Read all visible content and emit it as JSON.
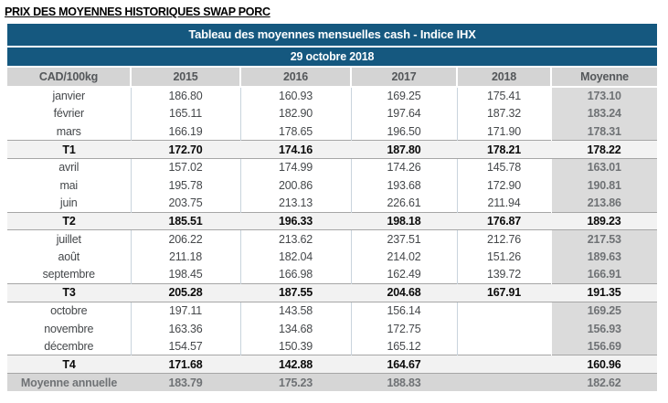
{
  "page_title": "PRIX DES MOYENNES HISTORIQUES SWAP PORC",
  "table": {
    "title": "Tableau des moyennes mensuelles cash - Indice IHX",
    "date": "29 octobre 2018",
    "columns": [
      "CAD/100kg",
      "2015",
      "2016",
      "2017",
      "2018",
      "Moyenne"
    ],
    "rows": [
      {
        "label": "janvier",
        "type": "month",
        "values": [
          "186.80",
          "160.93",
          "169.25",
          "175.41"
        ],
        "moyenne": "173.10"
      },
      {
        "label": "février",
        "type": "month",
        "values": [
          "165.11",
          "182.90",
          "197.64",
          "187.32"
        ],
        "moyenne": "183.24"
      },
      {
        "label": "mars",
        "type": "month",
        "values": [
          "166.19",
          "178.65",
          "196.50",
          "171.90"
        ],
        "moyenne": "178.31"
      },
      {
        "label": "T1",
        "type": "quarter",
        "values": [
          "172.70",
          "174.16",
          "187.80",
          "178.21"
        ],
        "moyenne": "178.22"
      },
      {
        "label": "avril",
        "type": "month",
        "values": [
          "157.02",
          "174.99",
          "174.26",
          "145.78"
        ],
        "moyenne": "163.01"
      },
      {
        "label": "mai",
        "type": "month",
        "values": [
          "195.78",
          "200.86",
          "193.68",
          "172.90"
        ],
        "moyenne": "190.81"
      },
      {
        "label": "juin",
        "type": "month",
        "values": [
          "203.75",
          "213.13",
          "226.61",
          "211.94"
        ],
        "moyenne": "213.86"
      },
      {
        "label": "T2",
        "type": "quarter",
        "values": [
          "185.51",
          "196.33",
          "198.18",
          "176.87"
        ],
        "moyenne": "189.23"
      },
      {
        "label": "juillet",
        "type": "month",
        "values": [
          "206.22",
          "213.62",
          "237.51",
          "212.76"
        ],
        "moyenne": "217.53"
      },
      {
        "label": "août",
        "type": "month",
        "values": [
          "211.18",
          "182.04",
          "214.02",
          "151.26"
        ],
        "moyenne": "189.63"
      },
      {
        "label": "septembre",
        "type": "month",
        "values": [
          "198.45",
          "166.98",
          "162.49",
          "139.72"
        ],
        "moyenne": "166.91"
      },
      {
        "label": "T3",
        "type": "quarter",
        "values": [
          "205.28",
          "187.55",
          "204.68",
          "167.91"
        ],
        "moyenne": "191.35"
      },
      {
        "label": "octobre",
        "type": "month",
        "values": [
          "197.11",
          "143.58",
          "156.14",
          ""
        ],
        "moyenne": "169.25"
      },
      {
        "label": "novembre",
        "type": "month",
        "values": [
          "163.36",
          "134.68",
          "172.75",
          ""
        ],
        "moyenne": "156.93"
      },
      {
        "label": "décembre",
        "type": "month",
        "values": [
          "154.57",
          "150.39",
          "165.12",
          ""
        ],
        "moyenne": "156.69"
      },
      {
        "label": "T4",
        "type": "quarter",
        "values": [
          "171.68",
          "142.88",
          "164.67",
          ""
        ],
        "moyenne": "160.96"
      },
      {
        "label": "Moyenne annuelle",
        "type": "annual",
        "values": [
          "183.79",
          "175.23",
          "188.83",
          ""
        ],
        "moyenne": "182.62"
      }
    ]
  },
  "colors": {
    "header_blue": "#15587F",
    "header_gray": "#D4D4D4",
    "moyenne_column_gray": "#DBDBDB",
    "quarter_row_gray": "#F2F2F2",
    "annual_row_gray": "#D6D6D6",
    "body_border": "#C9D4DD",
    "quarter_border": "#A6A6A6"
  }
}
